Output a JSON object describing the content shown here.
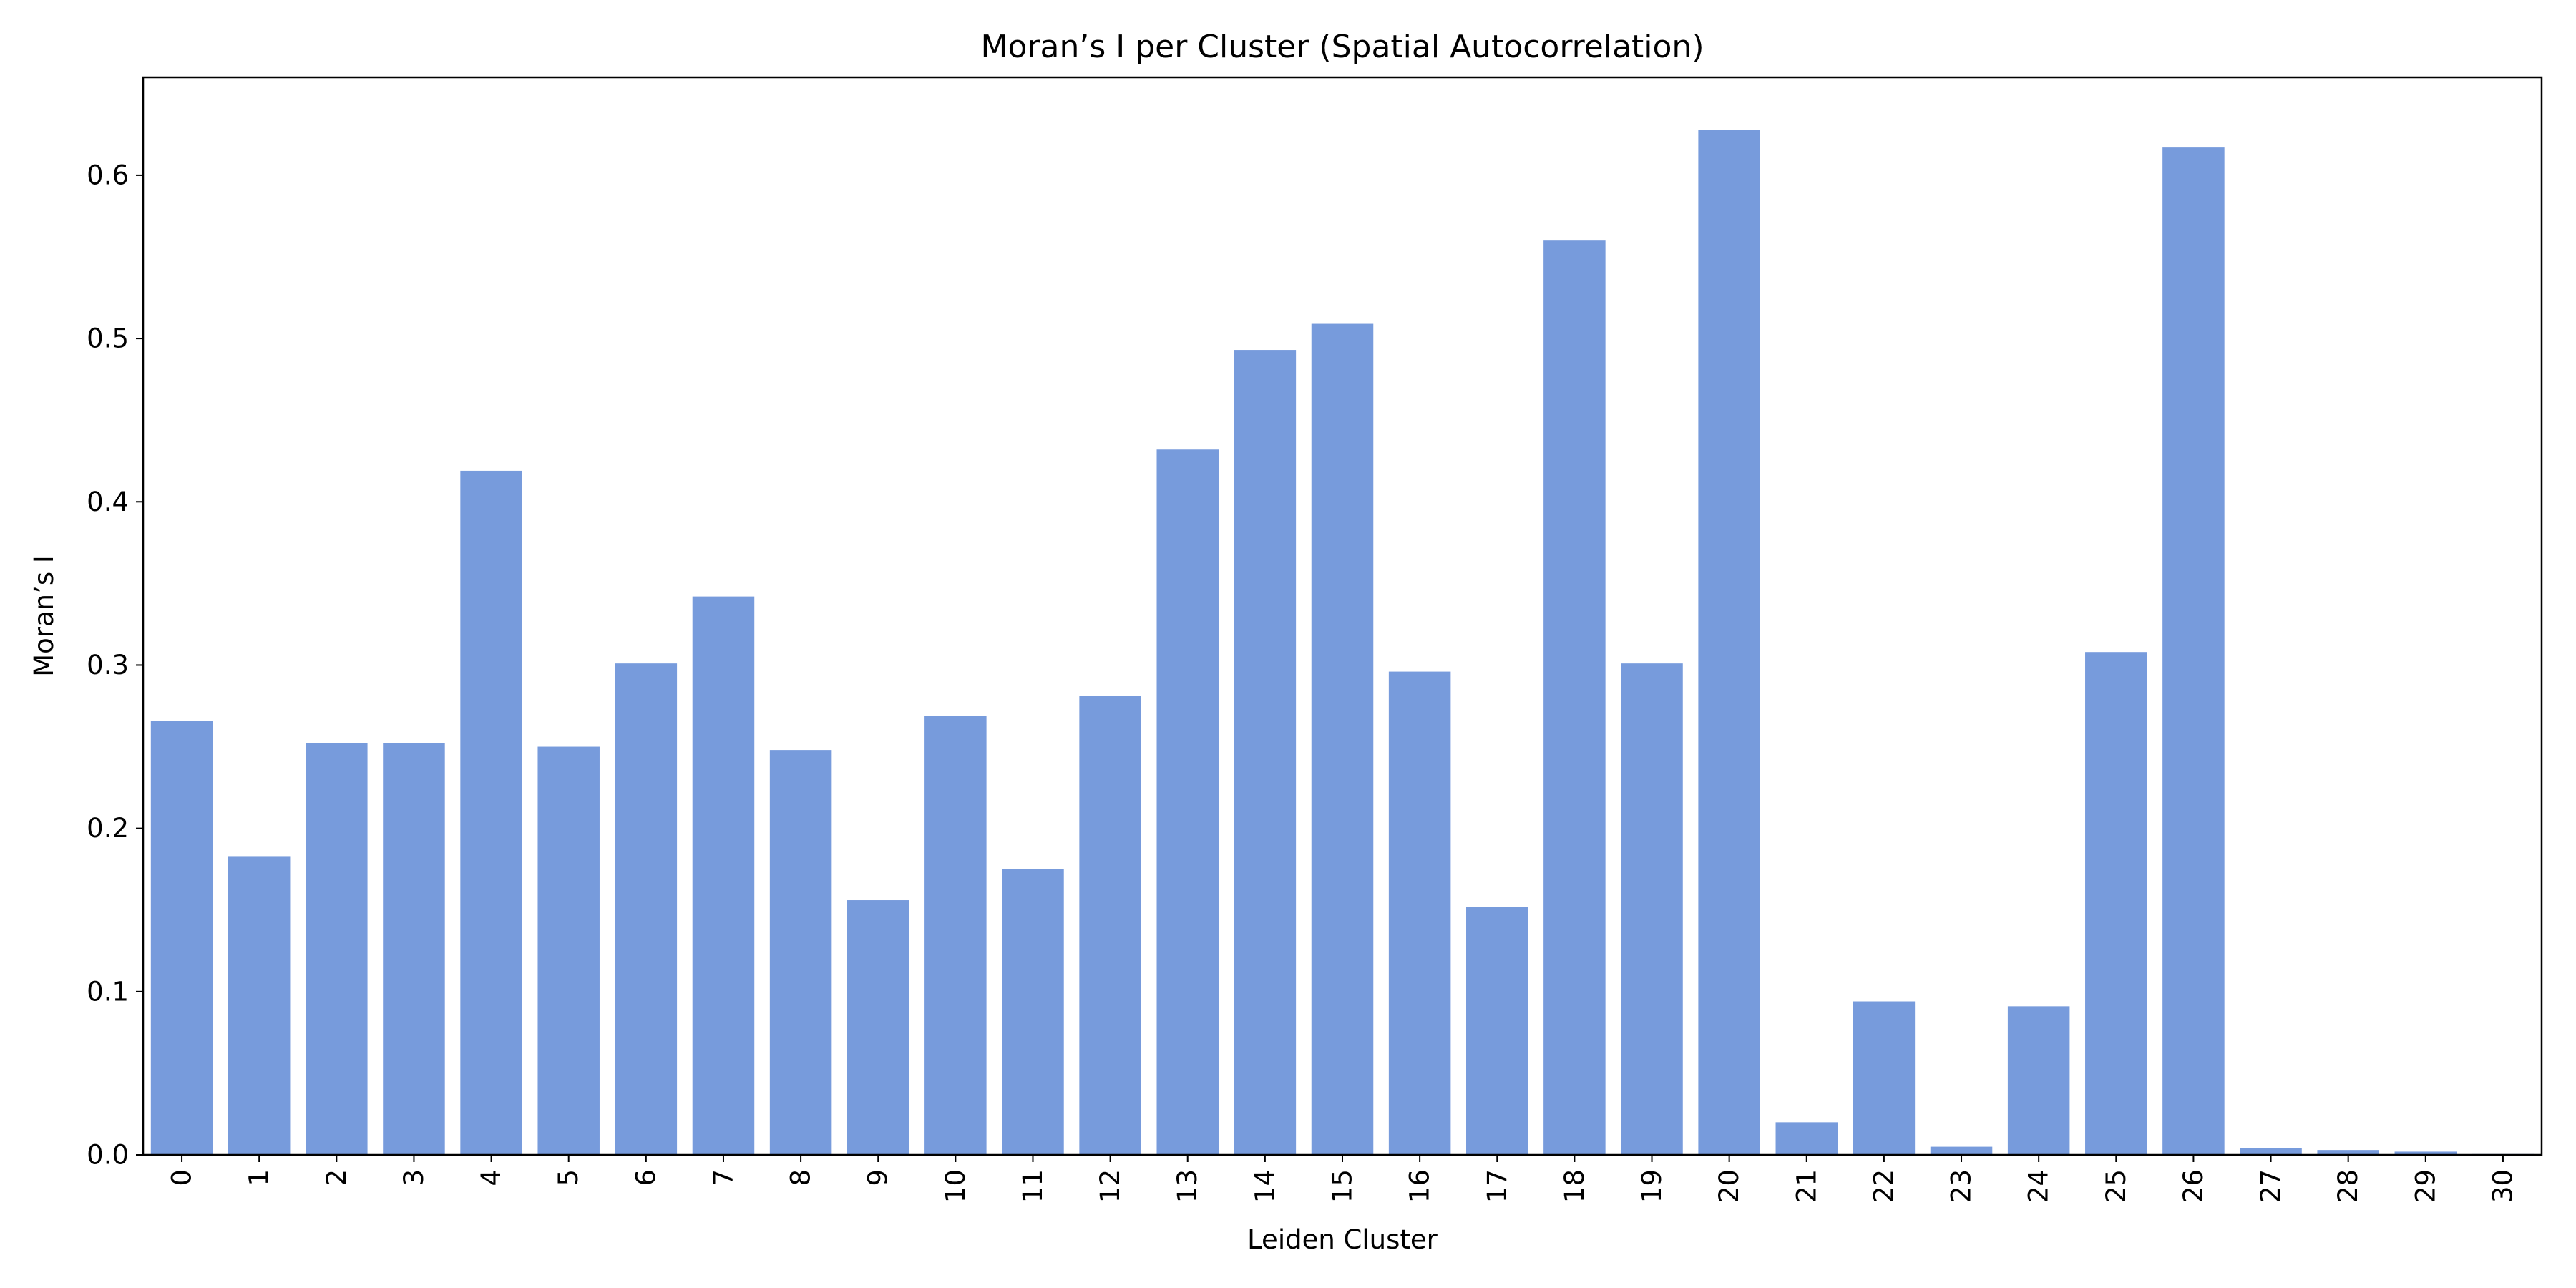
{
  "chart_data": {
    "type": "bar",
    "title": "Moran’s I per Cluster (Spatial Autocorrelation)",
    "xlabel": "Leiden Cluster",
    "ylabel": "Moran’s I",
    "categories": [
      "0",
      "1",
      "2",
      "3",
      "4",
      "5",
      "6",
      "7",
      "8",
      "9",
      "10",
      "11",
      "12",
      "13",
      "14",
      "15",
      "16",
      "17",
      "18",
      "19",
      "20",
      "21",
      "22",
      "23",
      "24",
      "25",
      "26",
      "27",
      "28",
      "29",
      "30"
    ],
    "values": [
      0.266,
      0.183,
      0.252,
      0.252,
      0.419,
      0.25,
      0.301,
      0.342,
      0.248,
      0.156,
      0.269,
      0.175,
      0.281,
      0.432,
      0.493,
      0.509,
      0.296,
      0.152,
      0.56,
      0.301,
      0.628,
      0.02,
      0.094,
      0.005,
      0.091,
      0.308,
      0.617,
      0.004,
      0.003,
      0.002,
      0.0005
    ],
    "ylim": [
      0,
      0.66
    ],
    "yticks": [
      0.0,
      0.1,
      0.2,
      0.3,
      0.4,
      0.5,
      0.6
    ],
    "bar_color": "#779bdc",
    "grid": false,
    "legend": "none"
  }
}
